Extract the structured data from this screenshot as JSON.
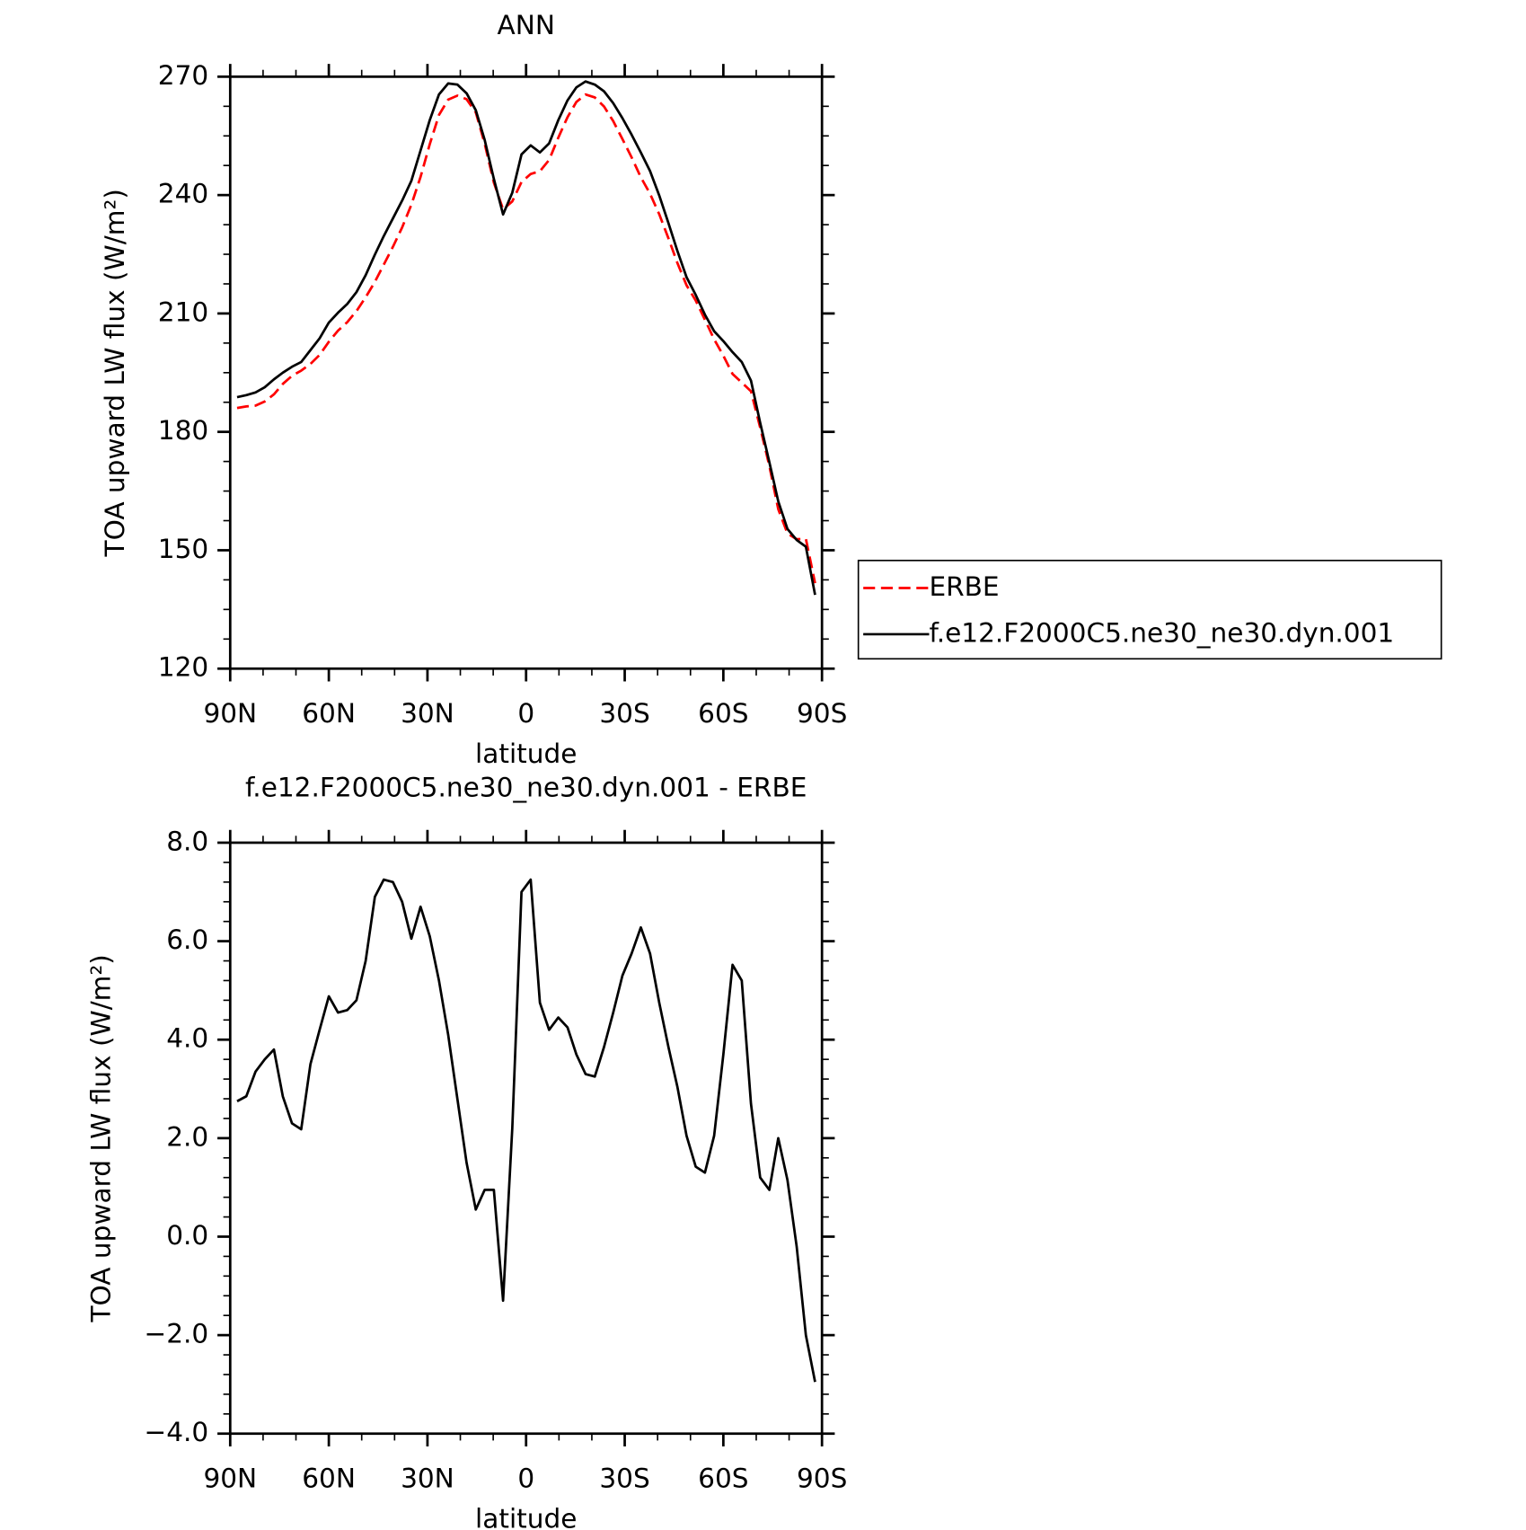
{
  "chart_data": [
    {
      "type": "line",
      "title": "ANN",
      "xlabel": "latitude",
      "ylabel": "TOA upward LW flux (W/m²)",
      "x": [
        87.9,
        85.1,
        82.3,
        79.5,
        76.7,
        74.0,
        71.2,
        68.4,
        65.6,
        62.8,
        60.0,
        57.2,
        54.4,
        51.6,
        48.8,
        46.0,
        43.3,
        40.5,
        37.7,
        34.9,
        32.1,
        29.3,
        26.5,
        23.7,
        20.9,
        18.1,
        15.3,
        12.6,
        9.8,
        7.0,
        4.2,
        1.4,
        -1.4,
        -4.2,
        -7.0,
        -9.8,
        -12.6,
        -15.3,
        -18.1,
        -20.9,
        -23.7,
        -26.5,
        -29.3,
        -32.1,
        -34.9,
        -37.7,
        -40.5,
        -43.3,
        -46.0,
        -48.8,
        -51.6,
        -54.4,
        -57.2,
        -60.0,
        -62.8,
        -65.6,
        -68.4,
        -71.2,
        -74.0,
        -76.7,
        -79.5,
        -82.3,
        -85.1,
        -87.9
      ],
      "series": [
        {
          "name": "ERBE",
          "color": "#ff0000",
          "dashed": true,
          "values": [
            186.05,
            186.45,
            186.65,
            187.7,
            189.5,
            192.15,
            194.2,
            195.52,
            197.2,
            199.5,
            202.82,
            205.65,
            207.8,
            210.6,
            214.1,
            218.0,
            222.35,
            226.9,
            231.8,
            237.55,
            244.6,
            252.9,
            260.3,
            264.2,
            265.2,
            264.3,
            260.95,
            253.05,
            243.15,
            236.4,
            238.4,
            243.3,
            245.35,
            246.05,
            248.9,
            254.55,
            259.75,
            263.6,
            265.5,
            264.75,
            262.45,
            258.75,
            254.2,
            249.55,
            244.52,
            240.35,
            235.15,
            229.05,
            222.85,
            217.15,
            213.28,
            208.4,
            203.45,
            199.3,
            194.68,
            192.5,
            190.3,
            181.1,
            171.35,
            160.4,
            154.25,
            152.8,
            152.9,
            141.65
          ]
        },
        {
          "name": "f.e12.F2000C5.ne30_ne30.dyn.001",
          "color": "#000000",
          "dashed": false,
          "values": [
            188.8,
            189.3,
            190.0,
            191.3,
            193.3,
            195.0,
            196.5,
            197.7,
            200.7,
            203.7,
            207.7,
            210.2,
            212.4,
            215.4,
            219.7,
            224.9,
            229.6,
            234.1,
            238.6,
            243.6,
            251.3,
            259.0,
            265.5,
            268.3,
            268.0,
            265.8,
            261.5,
            254.0,
            244.1,
            235.1,
            240.6,
            250.3,
            252.6,
            250.8,
            253.1,
            259.0,
            264.0,
            267.3,
            268.8,
            268.0,
            266.3,
            263.3,
            259.5,
            255.3,
            250.8,
            246.1,
            239.9,
            232.9,
            225.9,
            219.2,
            214.7,
            209.7,
            205.5,
            203.0,
            200.2,
            197.7,
            193.0,
            182.3,
            172.3,
            162.4,
            155.4,
            152.6,
            150.9,
            138.7
          ]
        }
      ],
      "xlim": [
        90,
        -90
      ],
      "xticks": [
        {
          "value": 90,
          "label": "90N"
        },
        {
          "value": 60,
          "label": "60N"
        },
        {
          "value": 30,
          "label": "30N"
        },
        0,
        {
          "value": -30,
          "label": "30S"
        },
        {
          "value": -60,
          "label": "60S"
        },
        {
          "value": -90,
          "label": "90S"
        }
      ],
      "ylim": [
        120,
        270
      ],
      "yticks": [
        120,
        150,
        180,
        210,
        240,
        270
      ],
      "legend": "outside-right"
    },
    {
      "type": "line",
      "title": "f.e12.F2000C5.ne30_ne30.dyn.001 - ERBE",
      "xlabel": "latitude",
      "ylabel": "TOA upward LW flux (W/m²)",
      "x": [
        87.9,
        85.1,
        82.3,
        79.5,
        76.7,
        74.0,
        71.2,
        68.4,
        65.6,
        62.8,
        60.0,
        57.2,
        54.4,
        51.6,
        48.8,
        46.0,
        43.3,
        40.5,
        37.7,
        34.9,
        32.1,
        29.3,
        26.5,
        23.7,
        20.9,
        18.1,
        15.3,
        12.6,
        9.8,
        7.0,
        4.2,
        1.4,
        -1.4,
        -4.2,
        -7.0,
        -9.8,
        -12.6,
        -15.3,
        -18.1,
        -20.9,
        -23.7,
        -26.5,
        -29.3,
        -32.1,
        -34.9,
        -37.7,
        -40.5,
        -43.3,
        -46.0,
        -48.8,
        -51.6,
        -54.4,
        -57.2,
        -60.0,
        -62.8,
        -65.6,
        -68.4,
        -71.2,
        -74.0,
        -76.7,
        -79.5,
        -82.3,
        -85.1,
        -87.9
      ],
      "series": [
        {
          "color": "#000000",
          "dashed": false,
          "values": [
            2.75,
            2.85,
            3.35,
            3.6,
            3.8,
            2.85,
            2.3,
            2.18,
            3.5,
            4.2,
            4.88,
            4.55,
            4.6,
            4.8,
            5.6,
            6.9,
            7.25,
            7.2,
            6.8,
            6.05,
            6.7,
            6.1,
            5.2,
            4.1,
            2.8,
            1.5,
            0.55,
            0.95,
            0.95,
            -1.3,
            2.2,
            7.0,
            7.25,
            4.75,
            4.2,
            4.45,
            4.25,
            3.7,
            3.3,
            3.25,
            3.85,
            4.55,
            5.3,
            5.75,
            6.28,
            5.75,
            4.75,
            3.85,
            3.05,
            2.05,
            1.42,
            1.3,
            2.05,
            3.7,
            5.52,
            5.2,
            2.7,
            1.2,
            0.95,
            2.0,
            1.15,
            -0.2,
            -2.0,
            -2.95
          ]
        }
      ],
      "xlim": [
        90,
        -90
      ],
      "xticks": [
        {
          "value": 90,
          "label": "90N"
        },
        {
          "value": 60,
          "label": "60N"
        },
        {
          "value": 30,
          "label": "30N"
        },
        0,
        {
          "value": -30,
          "label": "30S"
        },
        {
          "value": -60,
          "label": "60S"
        },
        {
          "value": -90,
          "label": "90S"
        }
      ],
      "ylim": [
        -4,
        8
      ],
      "yticks": [
        {
          "value": -4,
          "label": "−4.0"
        },
        {
          "value": -2,
          "label": "−2.0"
        },
        {
          "value": 0,
          "label": "0.0"
        },
        {
          "value": 2,
          "label": "2.0"
        },
        {
          "value": 4,
          "label": "4.0"
        },
        {
          "value": 6,
          "label": "6.0"
        },
        {
          "value": 8,
          "label": "8.0"
        }
      ]
    }
  ]
}
